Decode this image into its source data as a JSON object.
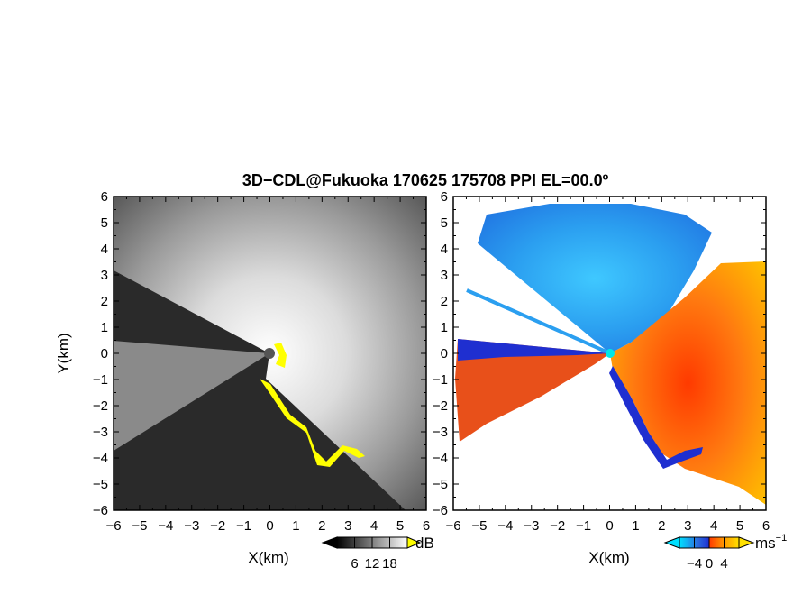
{
  "chart_data": [
    {
      "type": "heatmap",
      "panel": "reflectivity",
      "title": "3D−CDL@Fukuoka 170625 175708 PPI EL=00.0º",
      "xlabel": "X(km)",
      "ylabel": "Y(km)",
      "xlim": [
        -6,
        6
      ],
      "ylim": [
        -6,
        6
      ],
      "x_ticks": [
        "−6",
        "−5",
        "−4",
        "−3",
        "−2",
        "−1",
        "0",
        "1",
        "2",
        "3",
        "4",
        "5",
        "6"
      ],
      "y_ticks": [
        "6",
        "5",
        "4",
        "3",
        "2",
        "1",
        "0",
        "−1",
        "−2",
        "−3",
        "−4",
        "−5",
        "−6"
      ],
      "colorbar": {
        "unit": "dB",
        "tick_labels": [
          "6",
          "12",
          "18"
        ],
        "tick_values": [
          6,
          12,
          18
        ],
        "range": [
          0,
          24
        ],
        "colors": {
          "low": "#000000",
          "high": "#ffffff",
          "over": "#ffff00"
        }
      }
    },
    {
      "type": "heatmap",
      "panel": "doppler-velocity",
      "xlabel": "X(km)",
      "xlim": [
        -6,
        6
      ],
      "ylim": [
        -6,
        6
      ],
      "x_ticks": [
        "−6",
        "−5",
        "−4",
        "−3",
        "−2",
        "−1",
        "0",
        "1",
        "2",
        "3",
        "4",
        "5",
        "6"
      ],
      "y_ticks": [
        "6",
        "5",
        "4",
        "3",
        "2",
        "1",
        "0",
        "−1",
        "−2",
        "−3",
        "−4",
        "−5",
        "−6"
      ],
      "colorbar": {
        "unit": "ms",
        "unit_exponent": "−1",
        "tick_labels": [
          "−4",
          "0",
          "4"
        ],
        "tick_values": [
          -4,
          0,
          4
        ],
        "range": [
          -8,
          8
        ],
        "colors": {
          "min": "#00e0ff",
          "neg": "#1f2fd0",
          "pos": "#ff3a00",
          "max": "#ffe000"
        }
      }
    }
  ]
}
